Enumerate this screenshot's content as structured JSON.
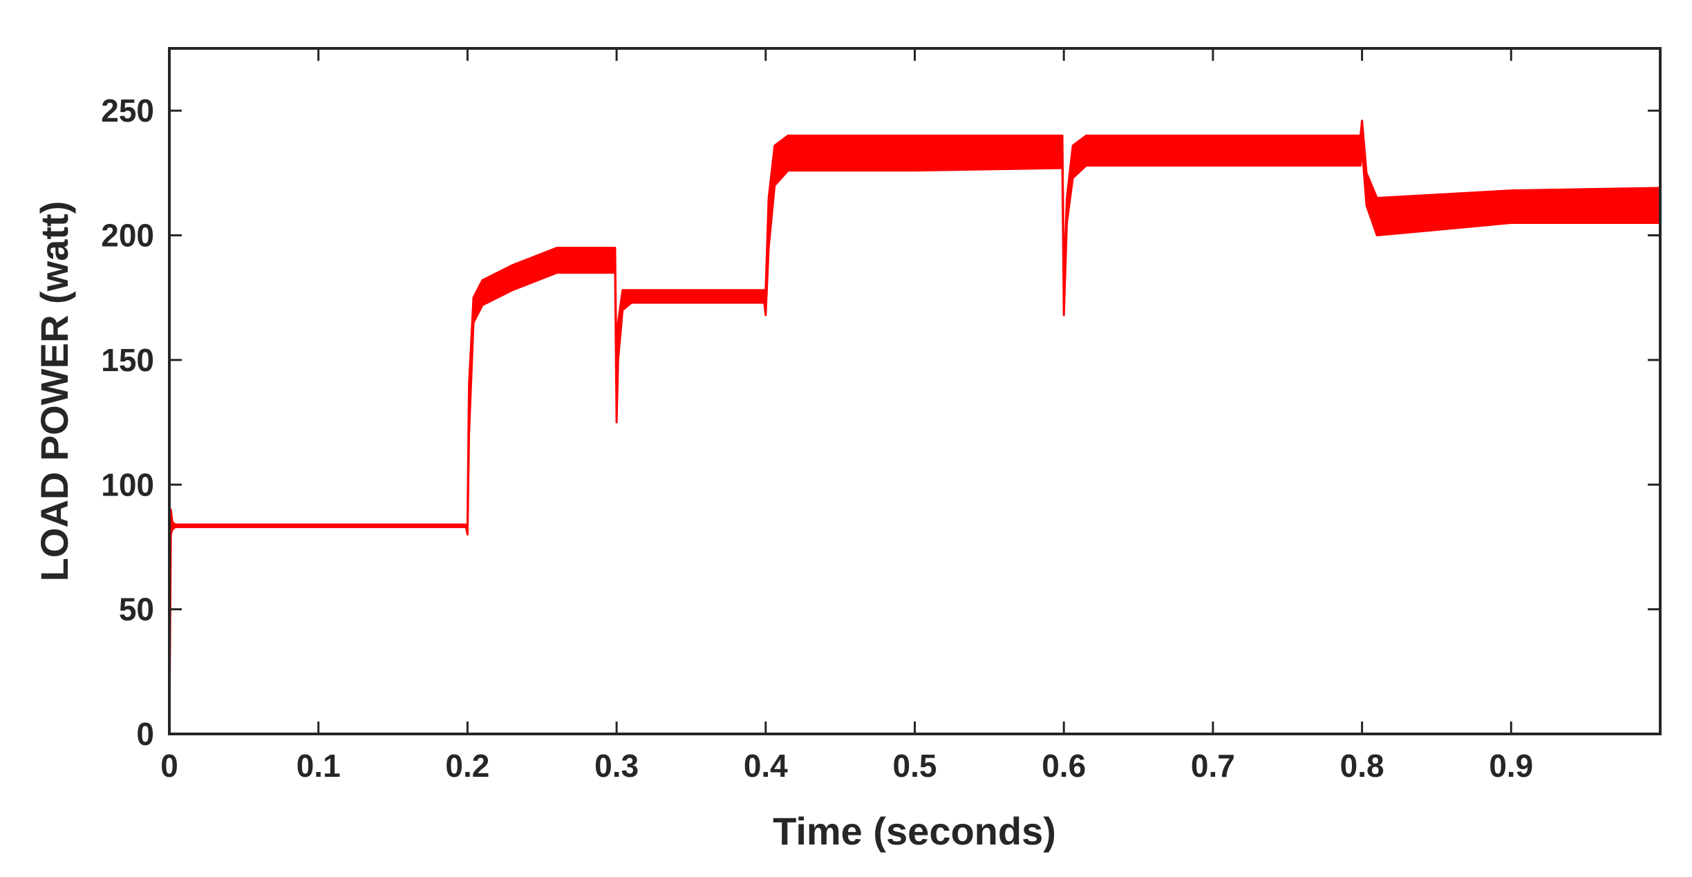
{
  "chart_data": {
    "type": "line",
    "title": "",
    "xlabel": "Time (seconds)",
    "ylabel": "LOAD POWER (watt)",
    "xlim": [
      0,
      1.0
    ],
    "ylim": [
      0,
      275
    ],
    "xticks": [
      0,
      0.1,
      0.2,
      0.3,
      0.4,
      0.5,
      0.6,
      0.7,
      0.8,
      0.9
    ],
    "xtick_labels": [
      "0",
      "0.1",
      "0.2",
      "0.3",
      "0.4",
      "0.5",
      "0.6",
      "0.7",
      "0.8",
      "0.9"
    ],
    "yticks": [
      0,
      50,
      100,
      150,
      200,
      250
    ],
    "ytick_labels": [
      "0",
      "50",
      "100",
      "150",
      "200",
      "250"
    ],
    "grid": false,
    "line_color": "#ff0000",
    "series": [
      {
        "x": [
          0,
          0.001,
          0.002,
          0.004,
          0.1,
          0.199,
          0.2,
          0.201,
          0.204,
          0.21,
          0.23,
          0.26,
          0.299,
          0.3,
          0.301,
          0.304,
          0.31,
          0.35,
          0.399,
          0.4,
          0.402,
          0.406,
          0.415,
          0.5,
          0.599,
          0.6,
          0.602,
          0.606,
          0.615,
          0.7,
          0.799,
          0.8,
          0.803,
          0.81,
          0.9,
          0.999
        ],
        "y_min": [
          0,
          80,
          82,
          83,
          83,
          83,
          80,
          120,
          165,
          172,
          178,
          185,
          185,
          125,
          150,
          170,
          173,
          173,
          173,
          168,
          195,
          220,
          226,
          226,
          227,
          168,
          205,
          223,
          228,
          228,
          228,
          235,
          212,
          200,
          205,
          205
        ],
        "y_max": [
          0,
          90,
          85,
          84,
          84,
          84,
          84,
          140,
          175,
          182,
          188,
          195,
          195,
          140,
          165,
          178,
          178,
          178,
          178,
          178,
          215,
          236,
          240,
          240,
          240,
          180,
          215,
          236,
          240,
          240,
          240,
          246,
          225,
          215,
          218,
          219
        ]
      }
    ]
  }
}
